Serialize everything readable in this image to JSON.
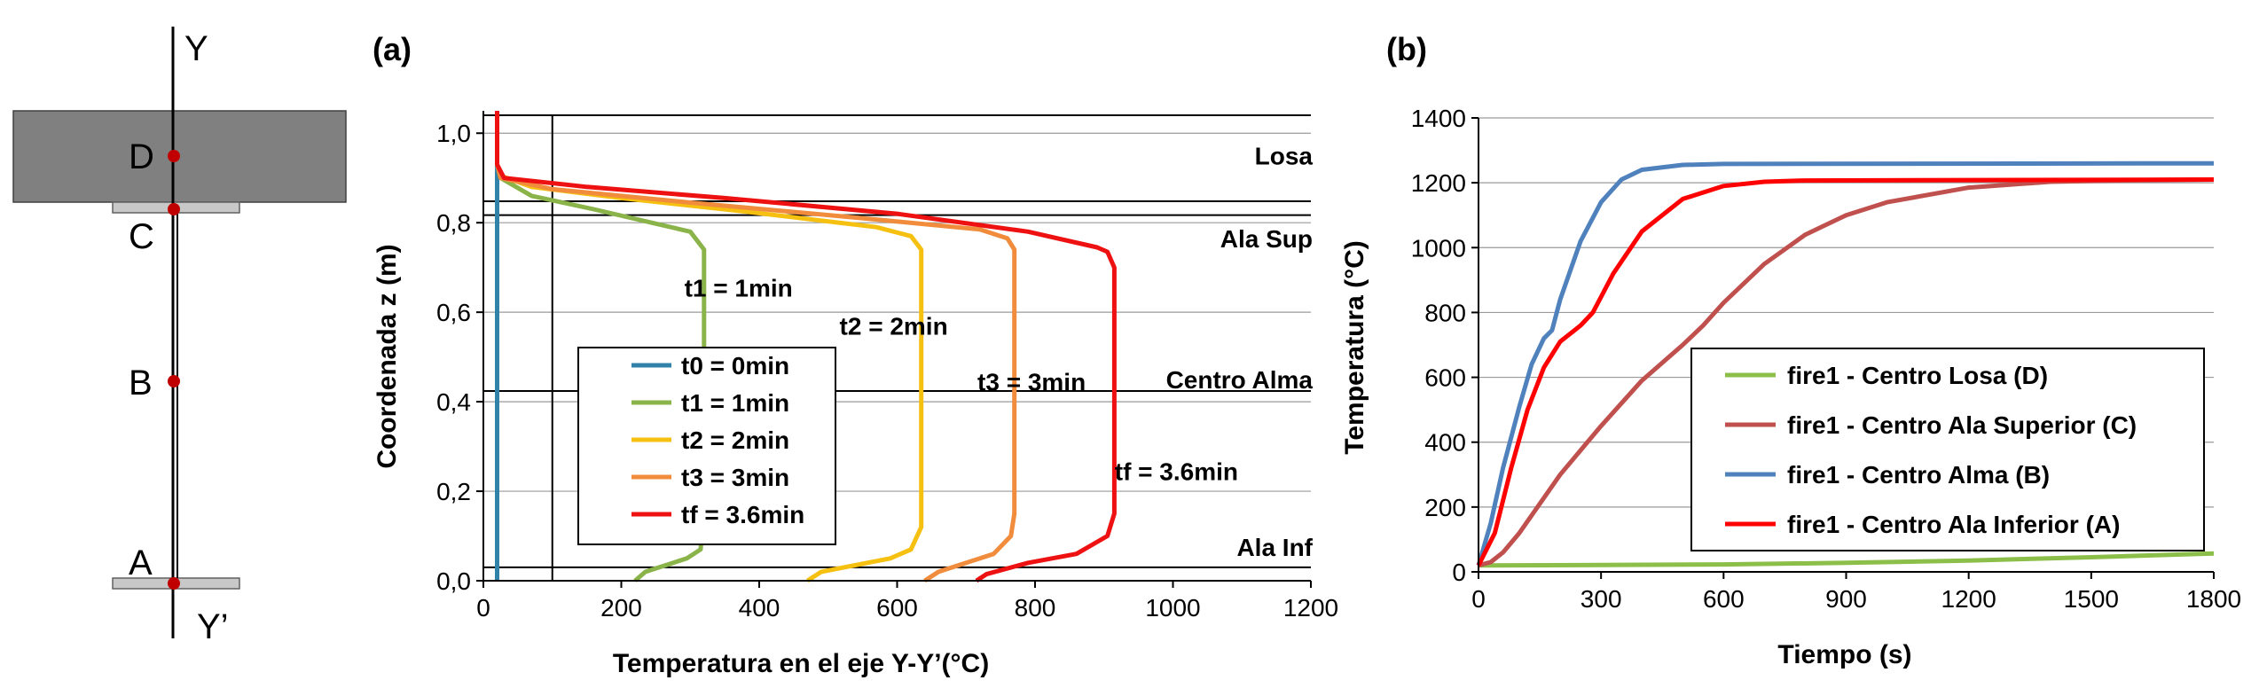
{
  "colors": {
    "slab": "#808080",
    "flange": "#c8c8c8",
    "point": "#c00000",
    "t0": "#3182a8",
    "t1": "#8ab44a",
    "t2": "#f5c010",
    "t3": "#f08c3c",
    "tf": "#ee1111",
    "losa": "#8cbf4a",
    "ala_sup": "#c0504d",
    "alma": "#4f81bd",
    "ala_inf": "#ff0000",
    "grid": "#9a9a9a",
    "axis": "#000000"
  },
  "schematic": {
    "axis_top": "Y",
    "axis_bottom": "Y’",
    "points": [
      "D",
      "C",
      "B",
      "A"
    ]
  },
  "chart_data": [
    {
      "type": "line",
      "panel_label": "(a)",
      "xlabel": "Temperatura  en el eje Y-Y’(°C)",
      "ylabel": "Coordenada z (m)",
      "xlim": [
        0,
        1200
      ],
      "ylim": [
        0,
        1.05
      ],
      "x_ticks": [
        "0",
        "200",
        "400",
        "600",
        "800",
        "1000",
        "1200"
      ],
      "y_ticks": [
        "0,0",
        "0,2",
        "0,4",
        "0,6",
        "0,8",
        "1,0"
      ],
      "grid": "horizontal",
      "reference_lines": [
        {
          "axis": "y",
          "value": 1.04
        },
        {
          "axis": "y",
          "value": 0.848
        },
        {
          "axis": "y",
          "value": 0.817
        },
        {
          "axis": "y",
          "value": 0.424
        },
        {
          "axis": "y",
          "value": 0.03
        },
        {
          "axis": "x",
          "value": 100
        }
      ],
      "zones": [
        {
          "label": "Losa",
          "z": 0.95
        },
        {
          "label": "Ala Sup",
          "z": 0.765
        },
        {
          "label": "Centro Alma",
          "z": 0.45
        },
        {
          "label": "Ala Inf",
          "z": 0.075
        }
      ],
      "annotations": [
        {
          "text": "t1 = 1min",
          "x": 370,
          "z": 0.655
        },
        {
          "text": "t2 = 2min",
          "x": 595,
          "z": 0.57
        },
        {
          "text": "t3 = 3min",
          "x": 795,
          "z": 0.445
        },
        {
          "text": "tf = 3.6min",
          "x": 1005,
          "z": 0.245
        }
      ],
      "legend": {
        "position": "center-left",
        "entries": [
          "t0 = 0min",
          "t1 = 1min",
          "t2 = 2min",
          "t3 = 3min",
          "tf = 3.6min"
        ]
      },
      "series": [
        {
          "name": "t0 = 0min",
          "color_key": "t0",
          "points": [
            [
              20,
              0.0
            ],
            [
              20,
              1.05
            ]
          ]
        },
        {
          "name": "t1 = 1min",
          "color_key": "t1",
          "points": [
            [
              220,
              0.0
            ],
            [
              235,
              0.02
            ],
            [
              295,
              0.05
            ],
            [
              315,
              0.07
            ],
            [
              320,
              0.15
            ],
            [
              320,
              0.5
            ],
            [
              320,
              0.74
            ],
            [
              300,
              0.78
            ],
            [
              160,
              0.83
            ],
            [
              70,
              0.86
            ],
            [
              25,
              0.9
            ],
            [
              20,
              0.93
            ],
            [
              20,
              1.05
            ]
          ]
        },
        {
          "name": "t2 = 2min",
          "color_key": "t2",
          "points": [
            [
              470,
              0.0
            ],
            [
              490,
              0.02
            ],
            [
              590,
              0.05
            ],
            [
              620,
              0.07
            ],
            [
              635,
              0.12
            ],
            [
              635,
              0.5
            ],
            [
              635,
              0.74
            ],
            [
              620,
              0.77
            ],
            [
              570,
              0.79
            ],
            [
              380,
              0.825
            ],
            [
              200,
              0.855
            ],
            [
              70,
              0.88
            ],
            [
              25,
              0.905
            ],
            [
              20,
              0.93
            ],
            [
              20,
              1.05
            ]
          ]
        },
        {
          "name": "t3 = 3min",
          "color_key": "t3",
          "points": [
            [
              640,
              0.0
            ],
            [
              660,
              0.02
            ],
            [
              740,
              0.06
            ],
            [
              765,
              0.1
            ],
            [
              770,
              0.15
            ],
            [
              770,
              0.5
            ],
            [
              770,
              0.74
            ],
            [
              760,
              0.765
            ],
            [
              720,
              0.785
            ],
            [
              550,
              0.81
            ],
            [
              300,
              0.845
            ],
            [
              100,
              0.875
            ],
            [
              25,
              0.9
            ],
            [
              20,
              0.93
            ],
            [
              20,
              1.05
            ]
          ]
        },
        {
          "name": "tf = 3.6min",
          "color_key": "tf",
          "points": [
            [
              715,
              0.0
            ],
            [
              730,
              0.015
            ],
            [
              790,
              0.04
            ],
            [
              860,
              0.06
            ],
            [
              905,
              0.1
            ],
            [
              915,
              0.15
            ],
            [
              915,
              0.5
            ],
            [
              915,
              0.7
            ],
            [
              905,
              0.735
            ],
            [
              890,
              0.745
            ],
            [
              790,
              0.78
            ],
            [
              600,
              0.82
            ],
            [
              350,
              0.855
            ],
            [
              150,
              0.88
            ],
            [
              30,
              0.9
            ],
            [
              20,
              0.93
            ],
            [
              20,
              0.98
            ],
            [
              20,
              1.05
            ]
          ]
        }
      ]
    },
    {
      "type": "line",
      "panel_label": "(b)",
      "xlabel": "Tiempo (s)",
      "ylabel": "Temperatura (°C)",
      "xlim": [
        0,
        1800
      ],
      "ylim": [
        0,
        1400
      ],
      "x_ticks": [
        "0",
        "300",
        "600",
        "900",
        "1200",
        "1500",
        "1800"
      ],
      "y_ticks": [
        "0",
        "200",
        "400",
        "600",
        "800",
        "1000",
        "1200",
        "1400"
      ],
      "grid": "horizontal",
      "legend": {
        "position": "center-right",
        "entries": [
          "fire1 - Centro Losa (D)",
          "fire1 - Centro Ala Superior (C)",
          "fire1 - Centro Alma (B)",
          "fire1 - Centro Ala Inferior (A)"
        ]
      },
      "series": [
        {
          "name": "fire1 - Centro Losa (D)",
          "color_key": "losa",
          "points": [
            [
              0,
              20
            ],
            [
              300,
              21
            ],
            [
              600,
              23
            ],
            [
              900,
              28
            ],
            [
              1200,
              35
            ],
            [
              1500,
              45
            ],
            [
              1800,
              57
            ]
          ]
        },
        {
          "name": "fire1 - Centro Ala Superior (C)",
          "color_key": "ala_sup",
          "points": [
            [
              0,
              20
            ],
            [
              30,
              30
            ],
            [
              60,
              60
            ],
            [
              100,
              120
            ],
            [
              150,
              210
            ],
            [
              200,
              300
            ],
            [
              300,
              450
            ],
            [
              400,
              590
            ],
            [
              500,
              700
            ],
            [
              550,
              760
            ],
            [
              600,
              830
            ],
            [
              700,
              950
            ],
            [
              800,
              1040
            ],
            [
              900,
              1100
            ],
            [
              1000,
              1140
            ],
            [
              1200,
              1185
            ],
            [
              1400,
              1203
            ],
            [
              1600,
              1208
            ],
            [
              1800,
              1210
            ]
          ]
        },
        {
          "name": "fire1 - Centro Alma (B)",
          "color_key": "alma",
          "points": [
            [
              0,
              20
            ],
            [
              30,
              150
            ],
            [
              60,
              320
            ],
            [
              100,
              510
            ],
            [
              130,
              640
            ],
            [
              160,
              720
            ],
            [
              180,
              745
            ],
            [
              200,
              840
            ],
            [
              250,
              1020
            ],
            [
              300,
              1140
            ],
            [
              350,
              1210
            ],
            [
              400,
              1240
            ],
            [
              500,
              1255
            ],
            [
              600,
              1258
            ],
            [
              1800,
              1260
            ]
          ]
        },
        {
          "name": "fire1 - Centro Ala Inferior (A)",
          "color_key": "ala_inf",
          "points": [
            [
              0,
              20
            ],
            [
              40,
              120
            ],
            [
              80,
              320
            ],
            [
              120,
              500
            ],
            [
              160,
              630
            ],
            [
              200,
              710
            ],
            [
              250,
              760
            ],
            [
              280,
              800
            ],
            [
              330,
              920
            ],
            [
              400,
              1050
            ],
            [
              500,
              1150
            ],
            [
              600,
              1190
            ],
            [
              700,
              1203
            ],
            [
              800,
              1207
            ],
            [
              1800,
              1210
            ]
          ]
        }
      ]
    }
  ]
}
